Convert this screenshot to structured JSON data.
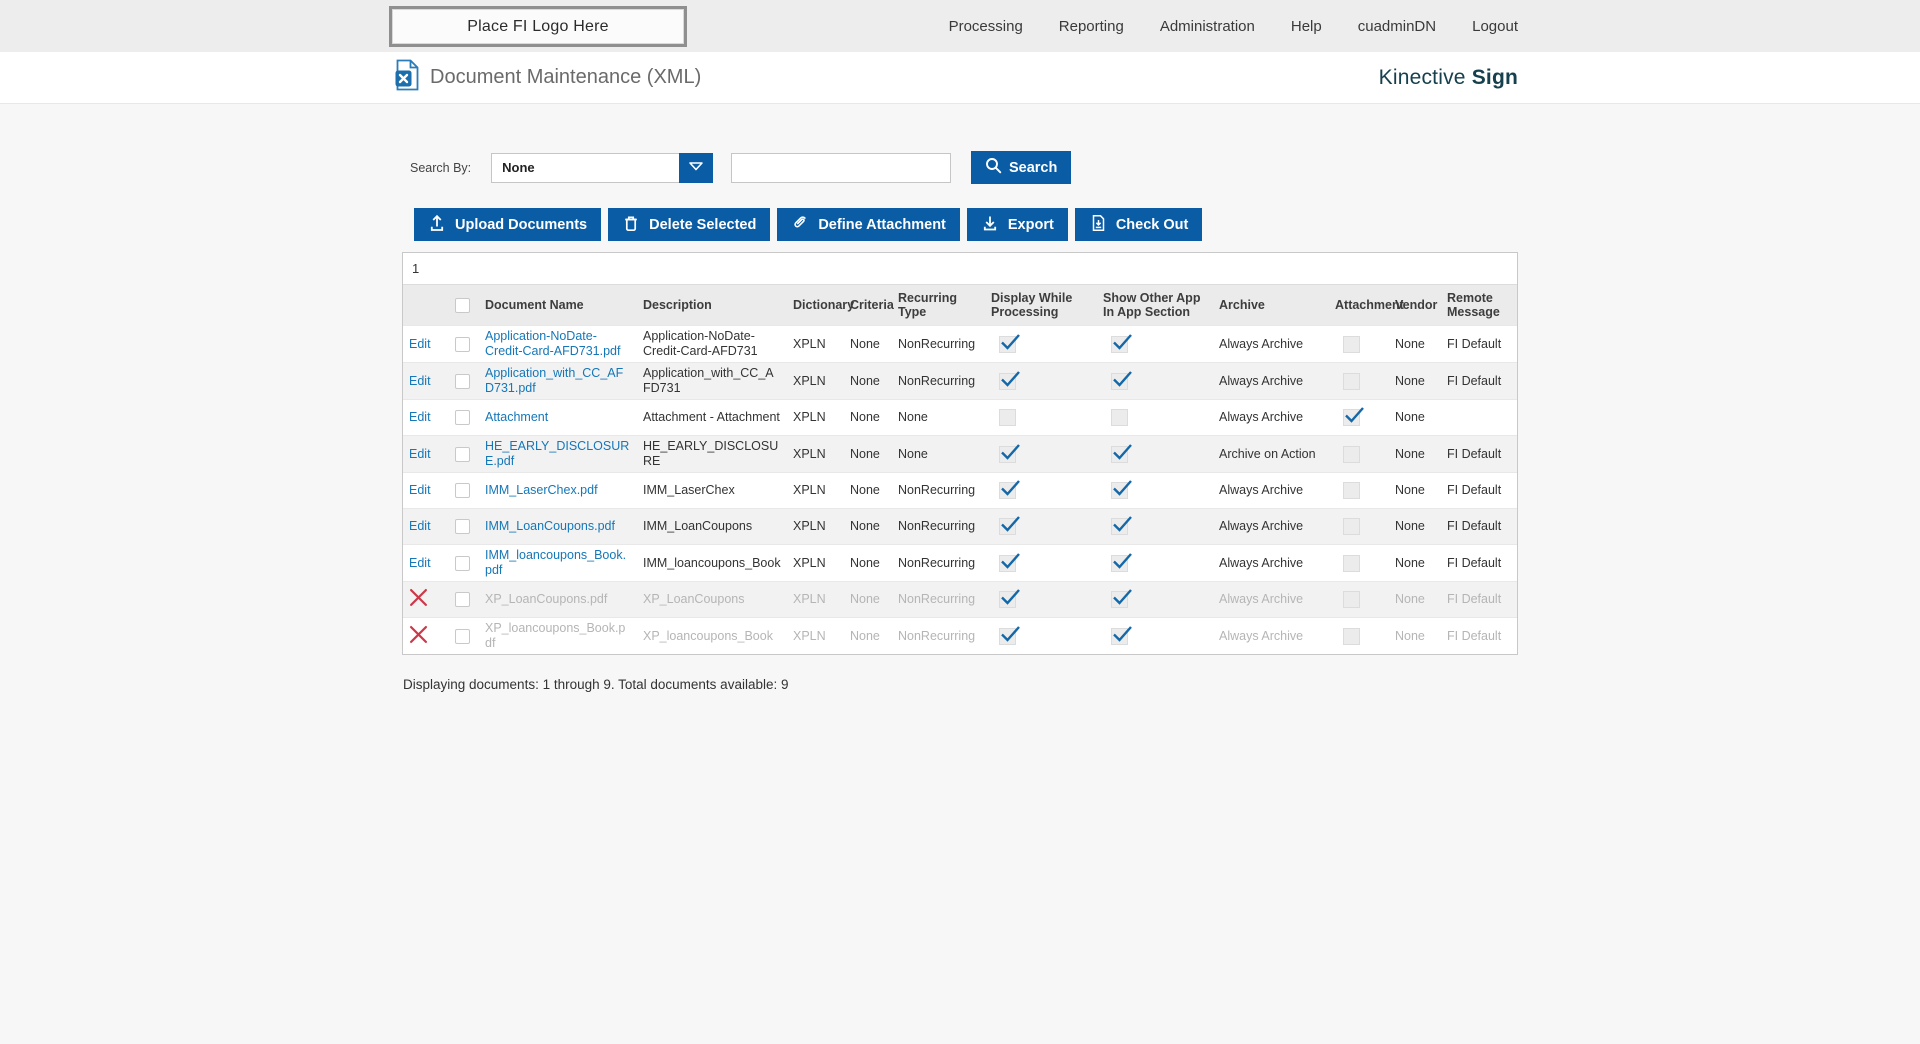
{
  "topnav": {
    "logo_placeholder": "Place FI Logo Here",
    "items": [
      "Processing",
      "Reporting",
      "Administration",
      "Help",
      "cuadminDN",
      "Logout"
    ]
  },
  "header": {
    "title": "Document Maintenance (XML)",
    "brand_name": "Kinective",
    "brand_suffix": "Sign"
  },
  "search": {
    "label": "Search By:",
    "selected_option": "None",
    "input_value": "",
    "button_label": "Search"
  },
  "actions": {
    "upload": "Upload Documents",
    "delete": "Delete Selected",
    "define_attachment": "Define Attachment",
    "export": "Export",
    "checkout": "Check Out"
  },
  "table": {
    "page": "1",
    "edit_label": "Edit",
    "columns": [
      "Document Name",
      "Description",
      "Dictionary",
      "Criteria",
      "Recurring Type",
      "Display While Processing",
      "Show Other App In App Section",
      "Archive",
      "Attachment",
      "Vendor",
      "Remote Message"
    ],
    "rows": [
      {
        "action": "edit",
        "link": true,
        "name": "Application-NoDate-Credit-Card-AFD731.pdf",
        "description": "Application-NoDate-Credit-Card-AFD731",
        "dictionary": "XPLN",
        "criteria": "None",
        "recurring": "NonRecurring",
        "display_while": true,
        "show_other": true,
        "archive": "Always Archive",
        "attachment": false,
        "vendor": "None",
        "remote": "FI Default",
        "disabled": false
      },
      {
        "action": "edit",
        "link": true,
        "name": "Application_with_CC_AFD731.pdf",
        "description": "Application_with_CC_AFD731",
        "dictionary": "XPLN",
        "criteria": "None",
        "recurring": "NonRecurring",
        "display_while": true,
        "show_other": true,
        "archive": "Always Archive",
        "attachment": false,
        "vendor": "None",
        "remote": "FI Default",
        "disabled": false
      },
      {
        "action": "edit",
        "link": true,
        "name": "Attachment",
        "description": "Attachment - Attachment",
        "dictionary": "XPLN",
        "criteria": "None",
        "recurring": "None",
        "display_while": false,
        "show_other": false,
        "archive": "Always Archive",
        "attachment": true,
        "vendor": "None",
        "remote": "",
        "disabled": false
      },
      {
        "action": "edit",
        "link": true,
        "name": "HE_EARLY_DISCLOSURE.pdf",
        "description": "HE_EARLY_DISCLOSURE",
        "dictionary": "XPLN",
        "criteria": "None",
        "recurring": "None",
        "display_while": true,
        "show_other": true,
        "archive": "Archive on Action",
        "attachment": false,
        "vendor": "None",
        "remote": "FI Default",
        "disabled": false
      },
      {
        "action": "edit",
        "link": true,
        "name": "IMM_LaserChex.pdf",
        "description": "IMM_LaserChex",
        "dictionary": "XPLN",
        "criteria": "None",
        "recurring": "NonRecurring",
        "display_while": true,
        "show_other": true,
        "archive": "Always Archive",
        "attachment": false,
        "vendor": "None",
        "remote": "FI Default",
        "disabled": false
      },
      {
        "action": "edit",
        "link": true,
        "name": "IMM_LoanCoupons.pdf",
        "description": "IMM_LoanCoupons",
        "dictionary": "XPLN",
        "criteria": "None",
        "recurring": "NonRecurring",
        "display_while": true,
        "show_other": true,
        "archive": "Always Archive",
        "attachment": false,
        "vendor": "None",
        "remote": "FI Default",
        "disabled": false
      },
      {
        "action": "edit",
        "link": true,
        "name": "IMM_loancoupons_Book.pdf",
        "description": "IMM_loancoupons_Book",
        "dictionary": "XPLN",
        "criteria": "None",
        "recurring": "NonRecurring",
        "display_while": true,
        "show_other": true,
        "archive": "Always Archive",
        "attachment": false,
        "vendor": "None",
        "remote": "FI Default",
        "disabled": false
      },
      {
        "action": "remove",
        "link": false,
        "name": "XP_LoanCoupons.pdf",
        "description": "XP_LoanCoupons",
        "dictionary": "XPLN",
        "criteria": "None",
        "recurring": "NonRecurring",
        "display_while": true,
        "show_other": true,
        "archive": "Always Archive",
        "attachment": false,
        "vendor": "None",
        "remote": "FI Default",
        "disabled": true
      },
      {
        "action": "remove",
        "link": false,
        "name": "XP_loancoupons_Book.pdf",
        "description": "XP_loancoupons_Book",
        "dictionary": "XPLN",
        "criteria": "None",
        "recurring": "NonRecurring",
        "display_while": true,
        "show_other": true,
        "archive": "Always Archive",
        "attachment": false,
        "vendor": "None",
        "remote": "FI Default",
        "disabled": true
      }
    ]
  },
  "status": "Displaying documents: 1 through 9. Total documents available: 9",
  "colors": {
    "accent": "#0a5ca5",
    "link": "#1577b8",
    "check": "#1568a8",
    "danger": "#cd3848",
    "brand": "#17404e"
  }
}
